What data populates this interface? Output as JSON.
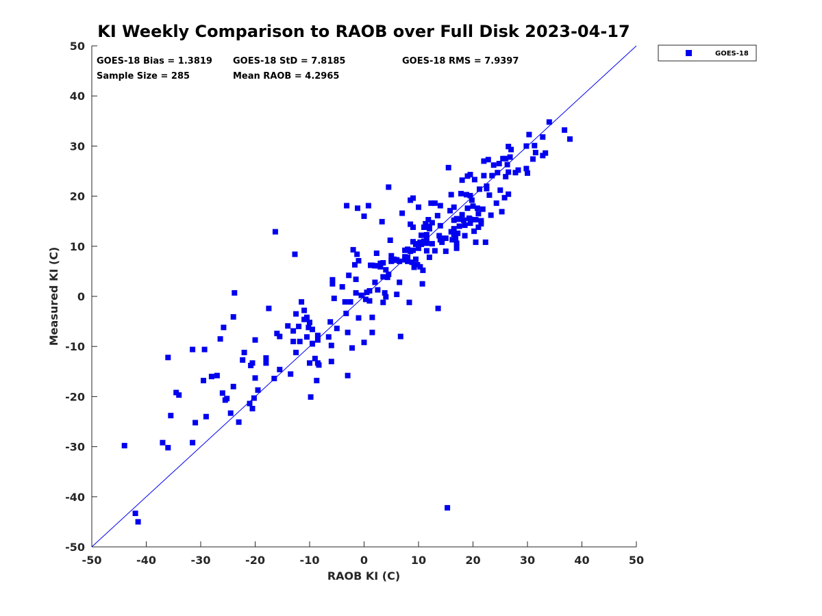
{
  "chart_data": {
    "type": "scatter",
    "title": "KI Weekly Comparison to RAOB over Full Disk 2023-04-17",
    "xlabel": "RAOB KI (C)",
    "ylabel": "Measured KI (C)",
    "xlim": [
      -50,
      50
    ],
    "ylim": [
      -50,
      50
    ],
    "xticks": [
      "-50",
      "-40",
      "-30",
      "-20",
      "-10",
      "0",
      "10",
      "20",
      "30",
      "40",
      "50"
    ],
    "yticks": [
      "50",
      "40",
      "30",
      "20",
      "10",
      "0",
      "-10",
      "-20",
      "-30",
      "-40",
      "-50"
    ],
    "reference_line": {
      "type": "one-to-one",
      "from": [
        -50,
        -50
      ],
      "to": [
        50,
        50
      ]
    },
    "stats": {
      "bias": "GOES-18 Bias = 1.3819",
      "std": "GOES-18 StD = 7.8185",
      "rms": "GOES-18 RMS = 7.9397",
      "sample_size": "Sample Size = 285",
      "mean_raob": "Mean RAOB = 4.2965"
    },
    "legend": {
      "placement": "outside-top-right",
      "entries": [
        "GOES-18"
      ]
    },
    "series": [
      {
        "name": "GOES-18",
        "color": "#0000ee",
        "marker": "square",
        "points": [
          [
            -44,
            -29.8
          ],
          [
            -42,
            -43.3
          ],
          [
            -41.5,
            -45
          ],
          [
            -37,
            -29.2
          ],
          [
            -36,
            -30.2
          ],
          [
            -36,
            -12.2
          ],
          [
            -35.5,
            -23.8
          ],
          [
            -34.5,
            -19.2
          ],
          [
            -34,
            -19.7
          ],
          [
            -31.5,
            -10.6
          ],
          [
            -31.5,
            -29.2
          ],
          [
            -31,
            -25.2
          ],
          [
            -29.5,
            -16.8
          ],
          [
            -29.3,
            -10.6
          ],
          [
            -29,
            -24
          ],
          [
            -28,
            -16
          ],
          [
            -27,
            -15.8
          ],
          [
            -26.4,
            -8.5
          ],
          [
            -26,
            -19.3
          ],
          [
            -25.8,
            -6.2
          ],
          [
            -25.5,
            -20.7
          ],
          [
            -25.2,
            -20.4
          ],
          [
            -24.5,
            -23.3
          ],
          [
            -24,
            -18
          ],
          [
            -24,
            -4.1
          ],
          [
            -23.8,
            0.7
          ],
          [
            -23,
            -25.1
          ],
          [
            -22.3,
            -12.7
          ],
          [
            -22,
            -11.2
          ],
          [
            -21,
            -21.4
          ],
          [
            -20.8,
            -13.8
          ],
          [
            -20.5,
            -13.3
          ],
          [
            -20.5,
            -22.4
          ],
          [
            -20.2,
            -20.3
          ],
          [
            -20,
            -16.3
          ],
          [
            -20,
            -8.7
          ],
          [
            -19.5,
            -18.7
          ],
          [
            -18,
            -12.3
          ],
          [
            -18,
            -13.3
          ],
          [
            -17.5,
            -2.4
          ],
          [
            -16.5,
            -16.4
          ],
          [
            -16.3,
            12.9
          ],
          [
            -16,
            -7.4
          ],
          [
            -15.5,
            -14.6
          ],
          [
            -15.5,
            -8
          ],
          [
            -14,
            -5.9
          ],
          [
            -13.5,
            -15.5
          ],
          [
            -13,
            -9
          ],
          [
            -13,
            -6.9
          ],
          [
            -12.7,
            8.4
          ],
          [
            -12.5,
            -3.5
          ],
          [
            -12.5,
            -11.2
          ],
          [
            -12,
            -6
          ],
          [
            -11.8,
            -9
          ],
          [
            -11.5,
            -1.1
          ],
          [
            -11,
            -2.8
          ],
          [
            -11,
            -4.6
          ],
          [
            -10.5,
            -4.2
          ],
          [
            -10.5,
            -8.1
          ],
          [
            -10.2,
            -6.2
          ],
          [
            -10,
            -5.2
          ],
          [
            -10,
            -13.3
          ],
          [
            -9.8,
            -20.1
          ],
          [
            -9.5,
            -9.5
          ],
          [
            -9.5,
            -6.6
          ],
          [
            -9.5,
            -9.4
          ],
          [
            -9,
            -12.4
          ],
          [
            -8.7,
            -16.8
          ],
          [
            -8.5,
            -13.3
          ],
          [
            -8.5,
            -7.8
          ],
          [
            -8.5,
            -8.7
          ],
          [
            -8.3,
            -13.7
          ],
          [
            -6.5,
            -8.1
          ],
          [
            -6.2,
            -5.1
          ],
          [
            -6,
            -13
          ],
          [
            -6,
            -9.8
          ],
          [
            -5.8,
            3.3
          ],
          [
            -5.8,
            2.5
          ],
          [
            -5.5,
            -0.4
          ],
          [
            -5,
            -6.4
          ],
          [
            -4,
            1.9
          ],
          [
            -3.5,
            -1.1
          ],
          [
            -3.3,
            -3.4
          ],
          [
            -3.2,
            18.1
          ],
          [
            -3,
            -15.8
          ],
          [
            -3,
            -7.2
          ],
          [
            -2.8,
            4.2
          ],
          [
            -2.5,
            -1.1
          ],
          [
            -2.2,
            -10.3
          ],
          [
            -2,
            9.3
          ],
          [
            -1.7,
            6.3
          ],
          [
            -1.5,
            3.4
          ],
          [
            -1.5,
            0.7
          ],
          [
            -1.3,
            8.4
          ],
          [
            -1.2,
            17.6
          ],
          [
            -1,
            -4.3
          ],
          [
            -1,
            7.1
          ],
          [
            -0.5,
            0.2
          ],
          [
            0,
            16
          ],
          [
            0,
            -9.2
          ],
          [
            0.3,
            -0.6
          ],
          [
            0.5,
            0.8
          ],
          [
            0.8,
            18.1
          ],
          [
            1,
            -0.9
          ],
          [
            1,
            1.1
          ],
          [
            1.2,
            6.2
          ],
          [
            1.5,
            6.2
          ],
          [
            1.5,
            -4.2
          ],
          [
            1.5,
            -7.2
          ],
          [
            2,
            6.1
          ],
          [
            2,
            2.8
          ],
          [
            2.3,
            8.6
          ],
          [
            2.5,
            6.1
          ],
          [
            2.5,
            1.3
          ],
          [
            3,
            5.9
          ],
          [
            3,
            6.6
          ],
          [
            3.3,
            14.9
          ],
          [
            3.5,
            6.7
          ],
          [
            3.5,
            -1.2
          ],
          [
            3.5,
            3.9
          ],
          [
            3.8,
            0.7
          ],
          [
            4,
            5.3
          ],
          [
            4,
            -0.1
          ],
          [
            4.3,
            3.8
          ],
          [
            4.5,
            21.8
          ],
          [
            4.5,
            4.4
          ],
          [
            4.8,
            11.2
          ],
          [
            5,
            8.1
          ],
          [
            5,
            7.2
          ],
          [
            5,
            7
          ],
          [
            5.5,
            7.4
          ],
          [
            5.8,
            7.2
          ],
          [
            6,
            7.3
          ],
          [
            6,
            0.4
          ],
          [
            6.5,
            2.8
          ],
          [
            6.5,
            7
          ],
          [
            6.7,
            -8
          ],
          [
            7,
            16.6
          ],
          [
            7.5,
            7.3
          ],
          [
            7.5,
            9.2
          ],
          [
            7.5,
            7.9
          ],
          [
            8,
            9.4
          ],
          [
            8,
            7.8
          ],
          [
            8,
            7
          ],
          [
            8.3,
            -1.2
          ],
          [
            8.5,
            19.2
          ],
          [
            8.5,
            14.4
          ],
          [
            8.5,
            9
          ],
          [
            8.8,
            6.8
          ],
          [
            9,
            19.6
          ],
          [
            9,
            13.8
          ],
          [
            9,
            10.9
          ],
          [
            9,
            9.2
          ],
          [
            9.2,
            5.8
          ],
          [
            9.5,
            10.4
          ],
          [
            9.5,
            7.4
          ],
          [
            9.8,
            6.3
          ],
          [
            10,
            17.8
          ],
          [
            10,
            10.5
          ],
          [
            10,
            9.6
          ],
          [
            10.3,
            10.8
          ],
          [
            10.3,
            5.9
          ],
          [
            10.5,
            12.2
          ],
          [
            10.5,
            10.4
          ],
          [
            10.7,
            2.5
          ],
          [
            10.8,
            5.2
          ],
          [
            11,
            13.8
          ],
          [
            11,
            11
          ],
          [
            11.3,
            14.5
          ],
          [
            11.5,
            12.3
          ],
          [
            11.5,
            11.5
          ],
          [
            11.5,
            10.6
          ],
          [
            11.5,
            9.1
          ],
          [
            11.8,
            15.3
          ],
          [
            12,
            14
          ],
          [
            12,
            13.5
          ],
          [
            12,
            7.8
          ],
          [
            12.3,
            18.6
          ],
          [
            12.5,
            14.7
          ],
          [
            12.5,
            10.5
          ],
          [
            13,
            18.6
          ],
          [
            13,
            9.1
          ],
          [
            13.5,
            16.1
          ],
          [
            13.8,
            12.1
          ],
          [
            14,
            18.1
          ],
          [
            14,
            14.1
          ],
          [
            14,
            11.3
          ],
          [
            14.3,
            10.8
          ],
          [
            14.5,
            11.6
          ],
          [
            15,
            11.6
          ],
          [
            15,
            9
          ],
          [
            15.5,
            25.7
          ],
          [
            15.8,
            17.1
          ],
          [
            16,
            20.3
          ],
          [
            16,
            12.9
          ],
          [
            16.2,
            11.3
          ],
          [
            16.5,
            17.8
          ],
          [
            16.5,
            15.2
          ],
          [
            16.5,
            13.5
          ],
          [
            16.5,
            12.4
          ],
          [
            16.8,
            11.6
          ],
          [
            17,
            10.6
          ],
          [
            17,
            9.6
          ],
          [
            17,
            15.5
          ],
          [
            17.2,
            12.6
          ],
          [
            17.5,
            15.4
          ],
          [
            17.5,
            14
          ],
          [
            17.8,
            20.5
          ],
          [
            18,
            23.2
          ],
          [
            18,
            16.3
          ],
          [
            18.3,
            15.2
          ],
          [
            18.5,
            14.2
          ],
          [
            18.5,
            12.1
          ],
          [
            18.8,
            20.3
          ],
          [
            19,
            24
          ],
          [
            19,
            17.6
          ],
          [
            19.3,
            15.6
          ],
          [
            19.5,
            20.1
          ],
          [
            19.5,
            24.3
          ],
          [
            19.5,
            14.6
          ],
          [
            19.5,
            15.4
          ],
          [
            19.8,
            19.2
          ],
          [
            20,
            18
          ],
          [
            20.2,
            13
          ],
          [
            20.3,
            23.3
          ],
          [
            20.5,
            15.3
          ],
          [
            20.5,
            10.8
          ],
          [
            20.8,
            17.6
          ],
          [
            21,
            16.5
          ],
          [
            21,
            13.8
          ],
          [
            21.2,
            21.4
          ],
          [
            21.5,
            15.1
          ],
          [
            21.5,
            14.5
          ],
          [
            21.8,
            17.4
          ],
          [
            22,
            27
          ],
          [
            22,
            24.1
          ],
          [
            22.3,
            10.8
          ],
          [
            22.5,
            22
          ],
          [
            22.5,
            21.5
          ],
          [
            22.8,
            27.3
          ],
          [
            23,
            20.2
          ],
          [
            23.3,
            16.2
          ],
          [
            23.5,
            24.1
          ],
          [
            23.8,
            26.2
          ],
          [
            24.3,
            18.6
          ],
          [
            24.5,
            24.7
          ],
          [
            24.8,
            26.5
          ],
          [
            25,
            21.2
          ],
          [
            25.3,
            16.9
          ],
          [
            25.5,
            27.5
          ],
          [
            25.8,
            19.7
          ],
          [
            26,
            27.5
          ],
          [
            26,
            23.9
          ],
          [
            26.3,
            26.3
          ],
          [
            26.5,
            29.9
          ],
          [
            26.5,
            24.8
          ],
          [
            26.5,
            20.4
          ],
          [
            26.8,
            27.8
          ],
          [
            27,
            29.3
          ],
          [
            27.8,
            24.7
          ],
          [
            28.3,
            25.2
          ],
          [
            29.8,
            30
          ],
          [
            29.8,
            25.5
          ],
          [
            30,
            24.6
          ],
          [
            30.3,
            32.3
          ],
          [
            31,
            27.4
          ],
          [
            31.3,
            30.1
          ],
          [
            31.5,
            28.7
          ],
          [
            32.8,
            31.8
          ],
          [
            32.8,
            28.1
          ],
          [
            33.3,
            28.6
          ],
          [
            34,
            34.8
          ],
          [
            36.8,
            33.2
          ],
          [
            37.8,
            31.4
          ],
          [
            13.6,
            -2.4
          ],
          [
            15.3,
            -42.2
          ]
        ]
      }
    ]
  }
}
